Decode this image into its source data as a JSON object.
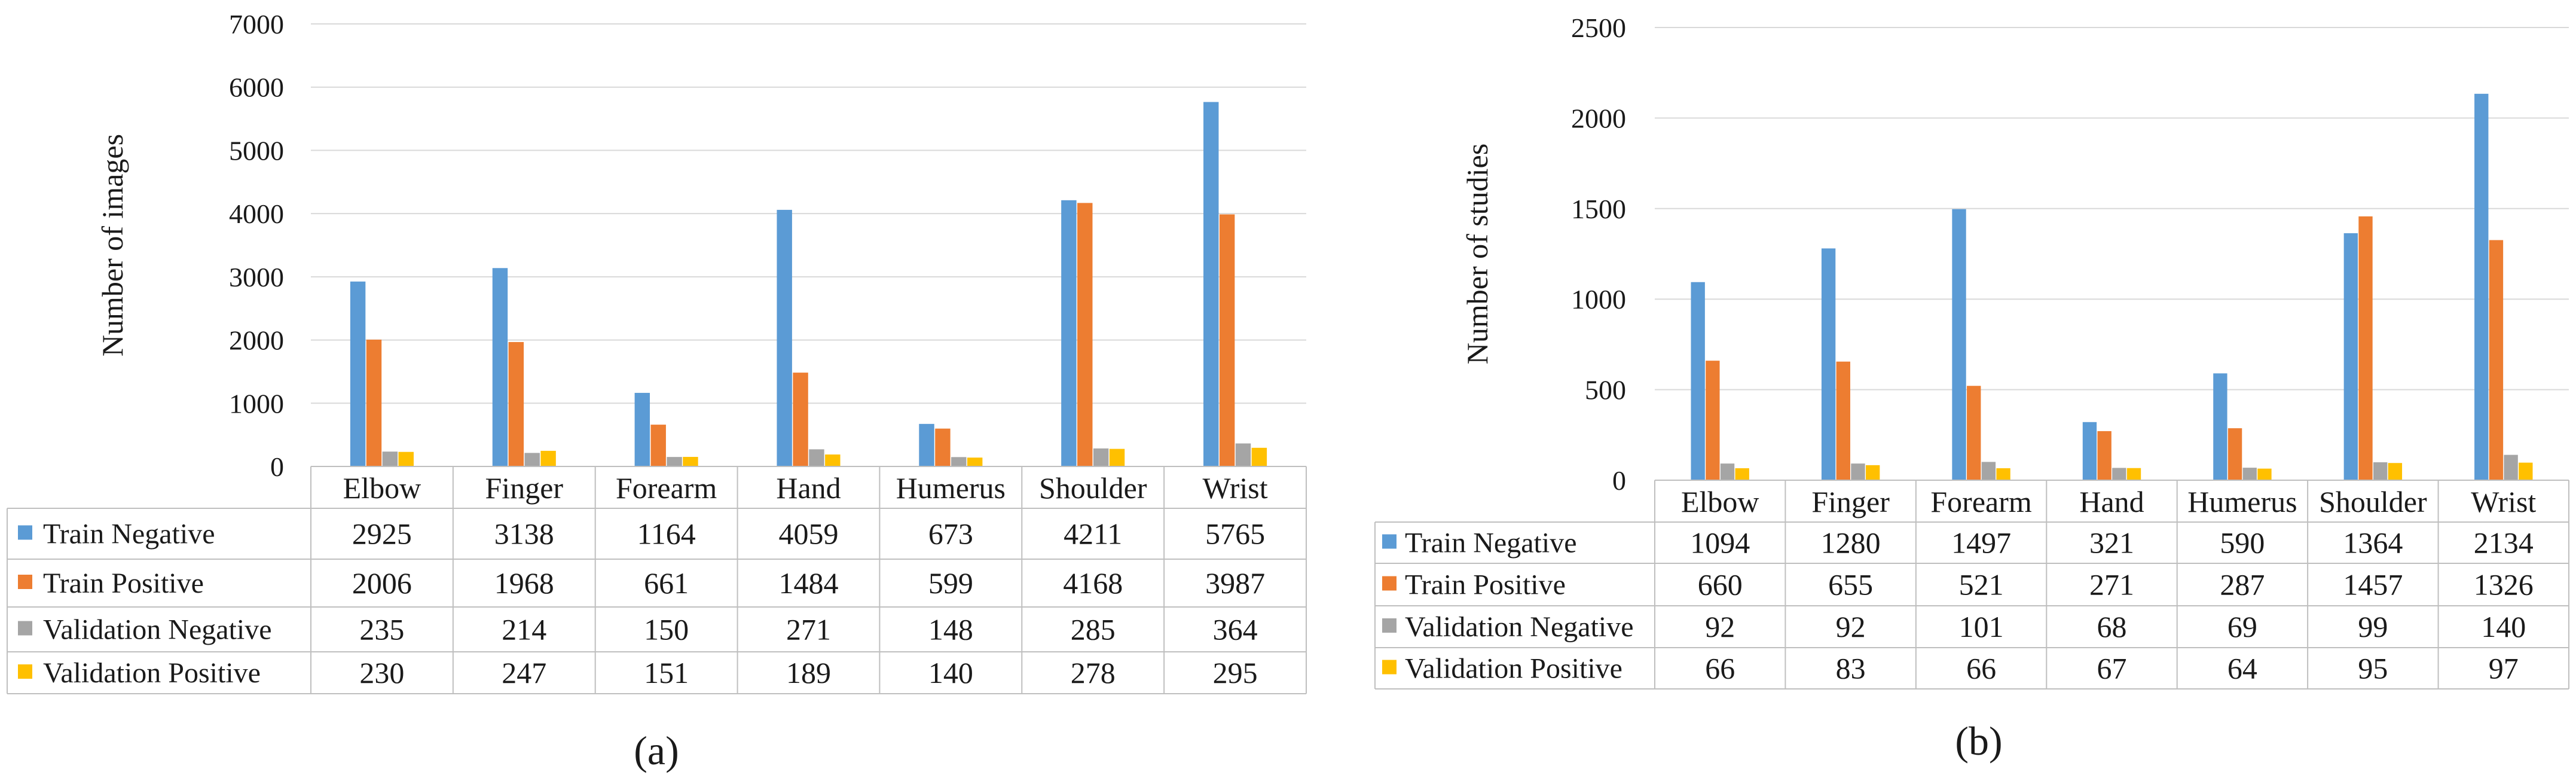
{
  "chart_data": [
    {
      "type": "bar",
      "panel": "(a)",
      "ylabel": "Number of images",
      "ylim": [
        0,
        7000
      ],
      "yticks": [
        0,
        1000,
        2000,
        3000,
        4000,
        5000,
        6000,
        7000
      ],
      "categories": [
        "Elbow",
        "Finger",
        "Forearm",
        "Hand",
        "Humerus",
        "Shoulder",
        "Wrist"
      ],
      "series": [
        {
          "name": "Train Negative",
          "color": "#5B9BD5",
          "values": [
            2925,
            3138,
            1164,
            4059,
            673,
            4211,
            5765
          ]
        },
        {
          "name": "Train Positive",
          "color": "#ED7D31",
          "values": [
            2006,
            1968,
            661,
            1484,
            599,
            4168,
            3987
          ]
        },
        {
          "name": "Validation Negative",
          "color": "#A5A5A5",
          "values": [
            235,
            214,
            150,
            271,
            148,
            285,
            364
          ]
        },
        {
          "name": "Validation Positive",
          "color": "#FFC000",
          "values": [
            230,
            247,
            151,
            189,
            140,
            278,
            295
          ]
        }
      ]
    },
    {
      "type": "bar",
      "panel": "(b)",
      "ylabel": "Number of studies",
      "ylim": [
        0,
        2500
      ],
      "yticks": [
        0,
        500,
        1000,
        1500,
        2000,
        2500
      ],
      "categories": [
        "Elbow",
        "Finger",
        "Forearm",
        "Hand",
        "Humerus",
        "Shoulder",
        "Wrist"
      ],
      "series": [
        {
          "name": "Train Negative",
          "color": "#5B9BD5",
          "values": [
            1094,
            1280,
            1497,
            321,
            590,
            1364,
            2134
          ]
        },
        {
          "name": "Train Positive",
          "color": "#ED7D31",
          "values": [
            660,
            655,
            521,
            271,
            287,
            1457,
            1326
          ]
        },
        {
          "name": "Validation Negative",
          "color": "#A5A5A5",
          "values": [
            92,
            92,
            101,
            68,
            69,
            99,
            140
          ]
        },
        {
          "name": "Validation Positive",
          "color": "#FFC000",
          "values": [
            66,
            83,
            66,
            67,
            64,
            95,
            97
          ]
        }
      ]
    }
  ]
}
